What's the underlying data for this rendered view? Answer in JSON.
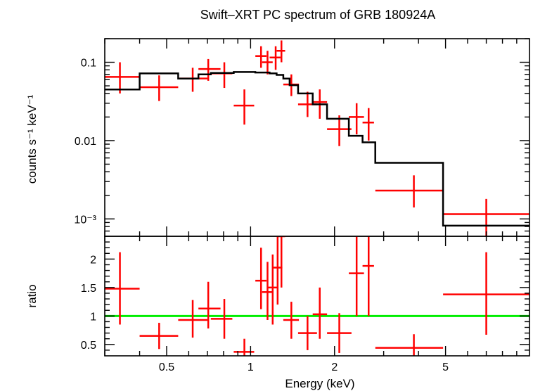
{
  "chart_data": [
    {
      "type": "scatter",
      "title": "Swift–XRT PC spectrum of GRB 180924A",
      "ylabel": "counts s⁻¹ keV⁻¹",
      "xlabel": "",
      "xscale": "log",
      "yscale": "log",
      "xlim": [
        0.3,
        10
      ],
      "ylim": [
        0.0006,
        0.2
      ],
      "x_ticks": [
        {
          "value": 0.5,
          "label": ""
        },
        {
          "value": 1,
          "label": ""
        },
        {
          "value": 2,
          "label": ""
        },
        {
          "value": 5,
          "label": ""
        }
      ],
      "y_ticks": [
        {
          "value": 0.1,
          "label": "0.1"
        },
        {
          "value": 0.01,
          "label": "0.01"
        },
        {
          "value": 0.001,
          "label": "10⁻³"
        }
      ],
      "series": [
        {
          "kind": "data",
          "color": "#ff0000",
          "points": [
            {
              "x": 0.34,
              "xlo": 0.3,
              "xhi": 0.4,
              "y": 0.065,
              "ylo": 0.04,
              "yhi": 0.1
            },
            {
              "x": 0.47,
              "xlo": 0.4,
              "xhi": 0.55,
              "y": 0.048,
              "ylo": 0.032,
              "yhi": 0.068
            },
            {
              "x": 0.62,
              "xlo": 0.55,
              "xhi": 0.7,
              "y": 0.062,
              "ylo": 0.042,
              "yhi": 0.085
            },
            {
              "x": 0.705,
              "xlo": 0.65,
              "xhi": 0.78,
              "y": 0.082,
              "ylo": 0.058,
              "yhi": 0.11
            },
            {
              "x": 0.805,
              "xlo": 0.72,
              "xhi": 0.86,
              "y": 0.072,
              "ylo": 0.047,
              "yhi": 0.1
            },
            {
              "x": 0.95,
              "xlo": 0.87,
              "xhi": 1.03,
              "y": 0.028,
              "ylo": 0.016,
              "yhi": 0.045
            },
            {
              "x": 1.09,
              "xlo": 1.04,
              "xhi": 1.14,
              "y": 0.12,
              "ylo": 0.085,
              "yhi": 0.16
            },
            {
              "x": 1.15,
              "xlo": 1.1,
              "xhi": 1.2,
              "y": 0.1,
              "ylo": 0.07,
              "yhi": 0.14
            },
            {
              "x": 1.23,
              "xlo": 1.17,
              "xhi": 1.28,
              "y": 0.115,
              "ylo": 0.08,
              "yhi": 0.16
            },
            {
              "x": 1.29,
              "xlo": 1.24,
              "xhi": 1.33,
              "y": 0.14,
              "ylo": 0.1,
              "yhi": 0.19
            },
            {
              "x": 1.4,
              "xlo": 1.31,
              "xhi": 1.49,
              "y": 0.052,
              "ylo": 0.037,
              "yhi": 0.07
            },
            {
              "x": 1.6,
              "xlo": 1.48,
              "xhi": 1.73,
              "y": 0.029,
              "ylo": 0.02,
              "yhi": 0.042
            },
            {
              "x": 1.77,
              "xlo": 1.67,
              "xhi": 1.88,
              "y": 0.031,
              "ylo": 0.019,
              "yhi": 0.045
            },
            {
              "x": 2.08,
              "xlo": 1.88,
              "xhi": 2.3,
              "y": 0.014,
              "ylo": 0.0085,
              "yhi": 0.021
            },
            {
              "x": 2.4,
              "xlo": 2.25,
              "xhi": 2.55,
              "y": 0.02,
              "ylo": 0.012,
              "yhi": 0.03
            },
            {
              "x": 2.65,
              "xlo": 2.52,
              "xhi": 2.77,
              "y": 0.017,
              "ylo": 0.01,
              "yhi": 0.026
            },
            {
              "x": 3.85,
              "xlo": 2.8,
              "xhi": 4.9,
              "y": 0.0023,
              "ylo": 0.0014,
              "yhi": 0.0036
            },
            {
              "x": 7.0,
              "xlo": 4.9,
              "xhi": 10,
              "y": 0.00115,
              "ylo": 0.0006,
              "yhi": 0.0018
            }
          ]
        },
        {
          "kind": "model",
          "color": "#000000",
          "steps": [
            {
              "x0": 0.3,
              "x1": 0.4,
              "y": 0.045
            },
            {
              "x0": 0.4,
              "x1": 0.55,
              "y": 0.072
            },
            {
              "x0": 0.55,
              "x1": 0.65,
              "y": 0.062
            },
            {
              "x0": 0.65,
              "x1": 0.72,
              "y": 0.07
            },
            {
              "x0": 0.72,
              "x1": 0.87,
              "y": 0.073
            },
            {
              "x0": 0.87,
              "x1": 1.04,
              "y": 0.075
            },
            {
              "x0": 1.04,
              "x1": 1.17,
              "y": 0.074
            },
            {
              "x0": 1.17,
              "x1": 1.24,
              "y": 0.072
            },
            {
              "x0": 1.24,
              "x1": 1.31,
              "y": 0.069
            },
            {
              "x0": 1.31,
              "x1": 1.38,
              "y": 0.062
            },
            {
              "x0": 1.38,
              "x1": 1.48,
              "y": 0.051
            },
            {
              "x0": 1.48,
              "x1": 1.67,
              "y": 0.04
            },
            {
              "x0": 1.67,
              "x1": 1.88,
              "y": 0.029
            },
            {
              "x0": 1.88,
              "x1": 2.25,
              "y": 0.019
            },
            {
              "x0": 2.25,
              "x1": 2.52,
              "y": 0.0115
            },
            {
              "x0": 2.52,
              "x1": 2.8,
              "y": 0.0095
            },
            {
              "x0": 2.8,
              "x1": 4.9,
              "y": 0.0052
            },
            {
              "x0": 4.9,
              "x1": 10,
              "y": 0.00082
            }
          ]
        }
      ]
    },
    {
      "type": "scatter",
      "title": "",
      "ylabel": "ratio",
      "xlabel": "Energy (keV)",
      "xscale": "log",
      "yscale": "linear",
      "xlim": [
        0.3,
        10
      ],
      "ylim": [
        0.3,
        2.4
      ],
      "x_ticks": [
        {
          "value": 0.5,
          "label": "0.5"
        },
        {
          "value": 1,
          "label": "1"
        },
        {
          "value": 2,
          "label": "2"
        },
        {
          "value": 5,
          "label": "5"
        }
      ],
      "y_ticks": [
        {
          "value": 0.5,
          "label": "0.5"
        },
        {
          "value": 1,
          "label": "1"
        },
        {
          "value": 1.5,
          "label": "1.5"
        },
        {
          "value": 2,
          "label": "2"
        }
      ],
      "reference_line": {
        "y": 1,
        "color": "#00ee00"
      },
      "series": [
        {
          "kind": "data",
          "color": "#ff0000",
          "points": [
            {
              "x": 0.34,
              "xlo": 0.3,
              "xhi": 0.4,
              "y": 1.48,
              "ylo": 0.85,
              "yhi": 2.12
            },
            {
              "x": 0.47,
              "xlo": 0.4,
              "xhi": 0.55,
              "y": 0.65,
              "ylo": 0.42,
              "yhi": 0.88
            },
            {
              "x": 0.62,
              "xlo": 0.55,
              "xhi": 0.7,
              "y": 0.93,
              "ylo": 0.62,
              "yhi": 1.28
            },
            {
              "x": 0.705,
              "xlo": 0.65,
              "xhi": 0.78,
              "y": 1.13,
              "ylo": 0.78,
              "yhi": 1.6
            },
            {
              "x": 0.805,
              "xlo": 0.72,
              "xhi": 0.86,
              "y": 0.95,
              "ylo": 0.6,
              "yhi": 1.3
            },
            {
              "x": 0.95,
              "xlo": 0.87,
              "xhi": 1.03,
              "y": 0.37,
              "ylo": 0.3,
              "yhi": 0.6
            },
            {
              "x": 1.09,
              "xlo": 1.04,
              "xhi": 1.14,
              "y": 1.62,
              "ylo": 1.12,
              "yhi": 2.2
            },
            {
              "x": 1.15,
              "xlo": 1.1,
              "xhi": 1.2,
              "y": 1.42,
              "ylo": 0.93,
              "yhi": 1.95
            },
            {
              "x": 1.2,
              "xlo": 1.15,
              "xhi": 1.25,
              "y": 1.5,
              "ylo": 0.85,
              "yhi": 2.08
            },
            {
              "x": 1.25,
              "xlo": 1.2,
              "xhi": 1.3,
              "y": 1.85,
              "ylo": 1.2,
              "yhi": 2.4
            },
            {
              "x": 1.29,
              "xlo": 1.25,
              "xhi": 1.33,
              "y": 2.4,
              "ylo": 1.5,
              "yhi": 2.4
            },
            {
              "x": 1.4,
              "xlo": 1.31,
              "xhi": 1.49,
              "y": 0.93,
              "ylo": 0.6,
              "yhi": 1.25
            },
            {
              "x": 1.6,
              "xlo": 1.48,
              "xhi": 1.73,
              "y": 0.7,
              "ylo": 0.4,
              "yhi": 1.0
            },
            {
              "x": 1.77,
              "xlo": 1.67,
              "xhi": 1.88,
              "y": 1.03,
              "ylo": 0.6,
              "yhi": 1.5
            },
            {
              "x": 2.08,
              "xlo": 1.88,
              "xhi": 2.3,
              "y": 0.7,
              "ylo": 0.35,
              "yhi": 1.05
            },
            {
              "x": 2.4,
              "xlo": 2.25,
              "xhi": 2.55,
              "y": 1.75,
              "ylo": 1.0,
              "yhi": 2.4
            },
            {
              "x": 2.65,
              "xlo": 2.52,
              "xhi": 2.77,
              "y": 1.88,
              "ylo": 1.0,
              "yhi": 2.4
            },
            {
              "x": 3.85,
              "xlo": 2.8,
              "xhi": 4.9,
              "y": 0.44,
              "ylo": 0.3,
              "yhi": 0.68
            },
            {
              "x": 7.0,
              "xlo": 4.9,
              "xhi": 10,
              "y": 1.38,
              "ylo": 0.67,
              "yhi": 2.12
            }
          ]
        }
      ]
    }
  ]
}
